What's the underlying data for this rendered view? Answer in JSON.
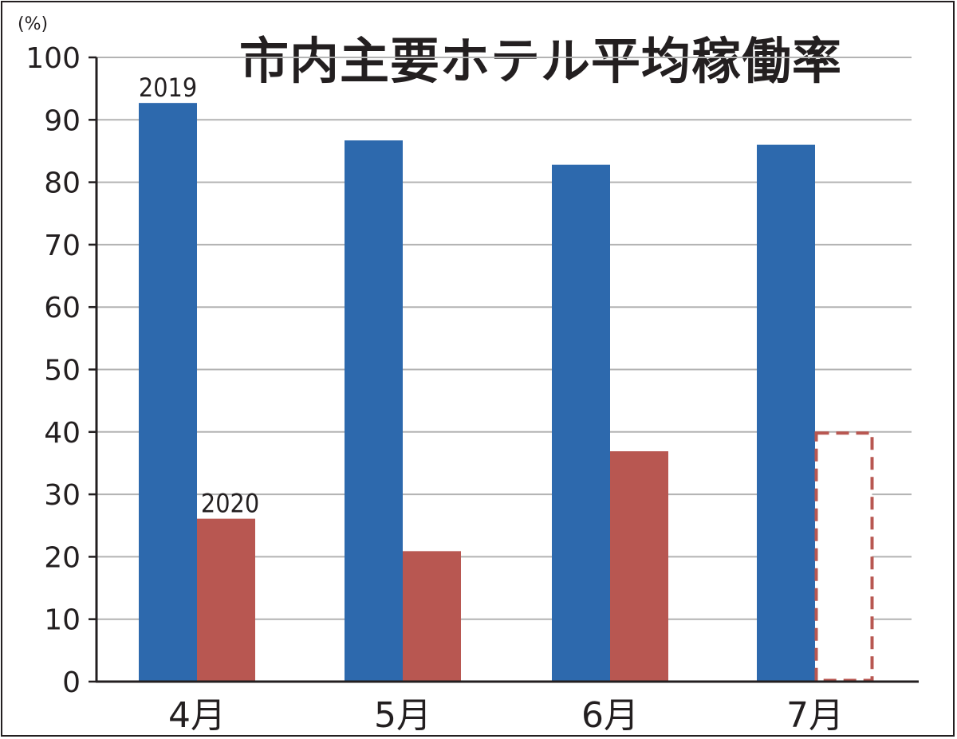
{
  "chart_data": {
    "type": "bar",
    "title": "市内主要ホテル平均稼働率",
    "unit_label": "(%)",
    "categories": [
      "4月",
      "5月",
      "6月",
      "7月"
    ],
    "series": [
      {
        "name": "2019",
        "values": [
          92.7,
          86.7,
          82.8,
          86.0
        ],
        "color": "#2d69ad",
        "style": "solid"
      },
      {
        "name": "2020",
        "values": [
          26.1,
          20.9,
          36.9,
          40.0
        ],
        "color": "#b85751",
        "style": "solid",
        "dashed_categories": [
          "7月"
        ]
      }
    ],
    "ylim": [
      0,
      100
    ],
    "yticks": [
      0,
      10,
      20,
      30,
      40,
      50,
      60,
      70,
      80,
      90,
      100
    ],
    "grid": true,
    "legend": "inline labels above first category bars"
  }
}
